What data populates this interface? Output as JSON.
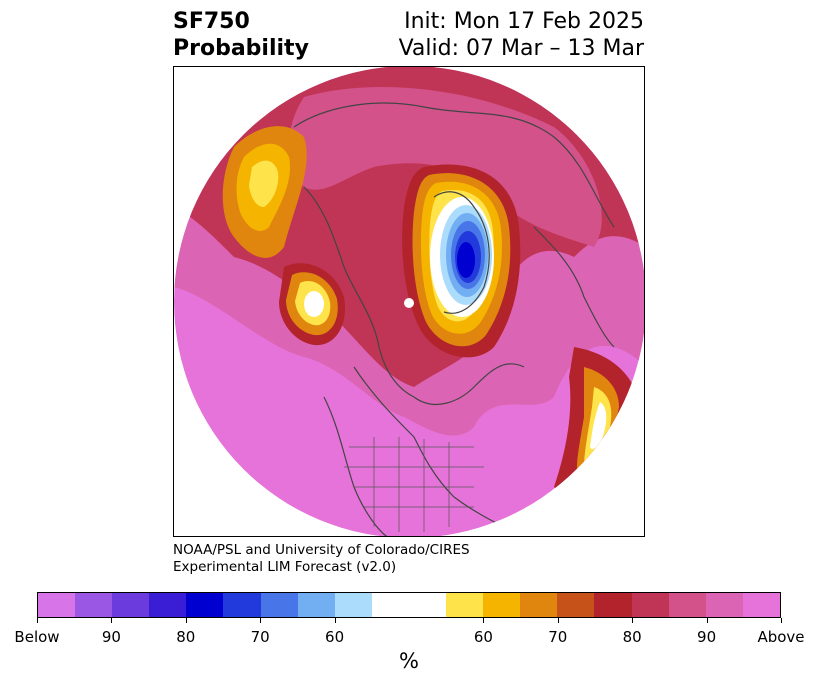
{
  "header": {
    "variable": "SF750",
    "product": "Probability",
    "init": "Init: Mon 17 Feb 2025",
    "valid": "Valid: 07 Mar – 13 Mar"
  },
  "credit": {
    "line1": "NOAA/PSL and University of Colorado/CIRES",
    "line2": "Experimental LIM Forecast (v2.0)"
  },
  "colorbar": {
    "units": "%",
    "colors": [
      "#d674e8",
      "#9a57e3",
      "#6b3bdd",
      "#3a1ed6",
      "#0000d0",
      "#2239dc",
      "#4876e8",
      "#72aef2",
      "#abdcfb",
      "#ffffff",
      "#ffffff",
      "#ffe34a",
      "#f5b400",
      "#e0860e",
      "#c6521a",
      "#b2232b",
      "#c03555",
      "#d3528a",
      "#dc64b4",
      "#e673d9"
    ],
    "tick_labels": [
      "Below",
      "90",
      "80",
      "70",
      "60",
      "60",
      "70",
      "80",
      "90",
      "Above"
    ]
  },
  "map": {
    "projection": "polar-stereographic",
    "features": [
      "coastlines",
      "country-borders",
      "us-state-borders"
    ]
  }
}
